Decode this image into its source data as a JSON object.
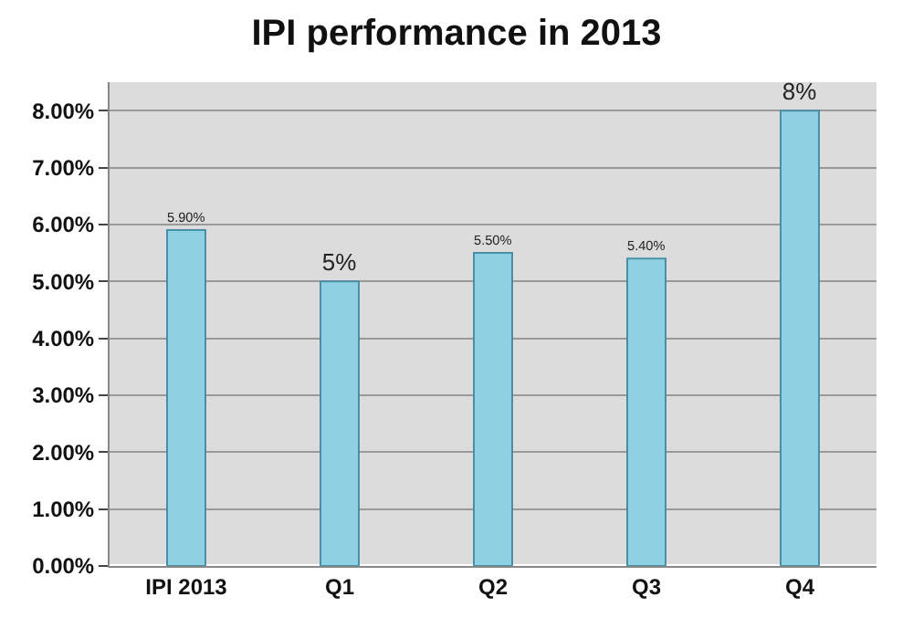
{
  "chart_data": {
    "type": "bar",
    "title": "IPI performance in 2013",
    "categories": [
      "IPI 2013",
      "Q1",
      "Q2",
      "Q3",
      "Q4"
    ],
    "values": [
      5.9,
      5,
      5.5,
      5.4,
      8
    ],
    "value_labels": [
      "5.90%",
      "5%",
      "5.50%",
      "5.40%",
      "8%"
    ],
    "color": "#8fd0e3",
    "ylim": [
      0,
      8.5
    ],
    "yticks": [
      {
        "value": 0,
        "label": "0.00%"
      },
      {
        "value": 1,
        "label": "1.00%"
      },
      {
        "value": 2,
        "label": "2.00%"
      },
      {
        "value": 3,
        "label": "3.00%"
      },
      {
        "value": 4,
        "label": "4.00%"
      },
      {
        "value": 5,
        "label": "5.00%"
      },
      {
        "value": 6,
        "label": "6.00%"
      },
      {
        "value": 7,
        "label": "7.00%"
      },
      {
        "value": 8,
        "label": "8.00%"
      }
    ],
    "grid": "y"
  }
}
